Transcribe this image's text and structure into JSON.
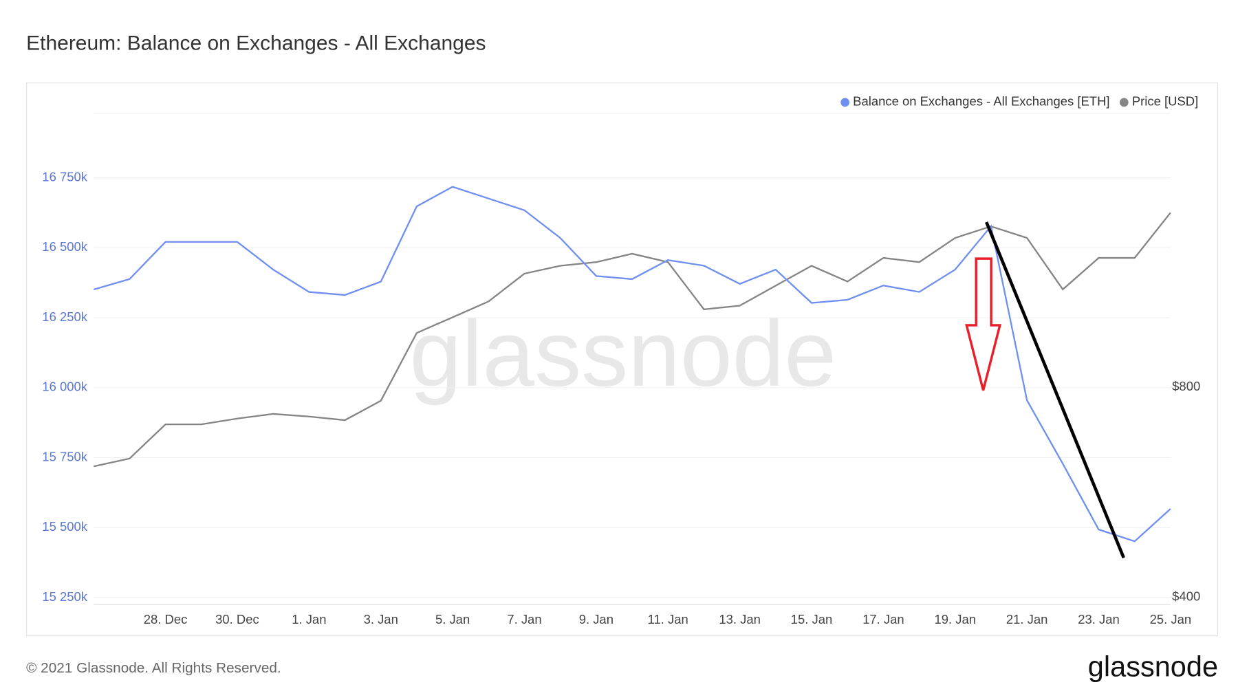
{
  "chart_data": {
    "type": "line",
    "title": "Ethereum: Balance on Exchanges - All Exchanges",
    "watermark": "glassnode",
    "footer": "© 2021 Glassnode. All Rights Reserved.",
    "logo": "glassnode",
    "categories": [
      null,
      null,
      "28. Dec",
      null,
      "30. Dec",
      null,
      "1. Jan",
      null,
      "3. Jan",
      null,
      "5. Jan",
      null,
      "7. Jan",
      null,
      "9. Jan",
      null,
      "11. Jan",
      null,
      "13. Jan",
      null,
      "15. Jan",
      null,
      "17. Jan",
      null,
      "19. Jan",
      null,
      "21. Jan",
      null,
      "23. Jan",
      null,
      "25. Jan"
    ],
    "series": [
      {
        "name": "Balance on Exchanges - All Exchanges [ETH]",
        "color": "#6f8ff0",
        "axis": "y",
        "values": [
          16351000,
          16388000,
          16521000,
          16521000,
          16521000,
          16422000,
          16342000,
          16331000,
          16379000,
          16648000,
          16718000,
          16676000,
          16634000,
          16535000,
          16399000,
          16388000,
          16456000,
          16436000,
          16371000,
          16422000,
          16303000,
          16314000,
          16365000,
          16342000,
          16422000,
          16577000,
          15955000,
          15728000,
          15493000,
          15451000,
          15567000
        ]
      },
      {
        "name": "Price [USD]",
        "color": "#848484",
        "axis": "y2",
        "values": [
          649,
          664,
          729,
          729,
          740,
          749,
          744,
          737,
          774,
          903,
          933,
          963,
          1016,
          1031,
          1038,
          1054,
          1038,
          948,
          955,
          993,
          1031,
          1001,
          1046,
          1038,
          1084,
          1106,
          1084,
          986,
          1046,
          1046,
          1132
        ]
      }
    ],
    "ylim": [
      15225000,
      16980000
    ],
    "yticks": [
      {
        "value": 16750000,
        "label": "16 750k"
      },
      {
        "value": 16500000,
        "label": "16 500k"
      },
      {
        "value": 16250000,
        "label": "16 250k"
      },
      {
        "value": 16000000,
        "label": "16 000k"
      },
      {
        "value": 15750000,
        "label": "15 750k"
      },
      {
        "value": 15500000,
        "label": "15 500k"
      },
      {
        "value": 15250000,
        "label": "15 250k"
      }
    ],
    "y2lim": [
      386,
      1321
    ],
    "y2ticks": [
      {
        "value": 800,
        "label": "$800"
      },
      {
        "value": 400,
        "label": "$400"
      }
    ],
    "grid": true,
    "legend": "top-right"
  }
}
